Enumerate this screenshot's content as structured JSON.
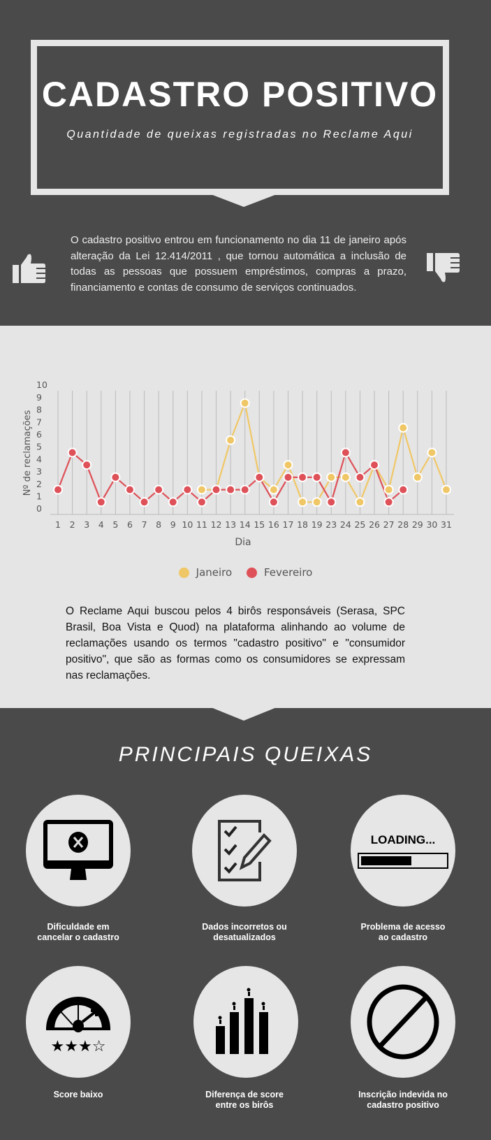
{
  "header": {
    "title": "CADASTRO POSITIVO",
    "subtitle": "Quantidade de queixas registradas no Reclame Aqui"
  },
  "intro": "O cadastro positivo entrou em funcionamento no dia 11 de janeiro após alteração da Lei 12.414/2011 , que tornou automática a inclusão de todas as pessoas que possuem empréstimos, compras a prazo, financiamento e contas de consumo de serviços continuados.",
  "icons": {
    "left": "thumbs-up-icon",
    "right": "thumbs-down-icon"
  },
  "chart_data": {
    "type": "line",
    "xlabel": "Dia",
    "ylabel": "Nº de reclamações",
    "ylim": [
      0,
      10
    ],
    "yticks": [
      "0",
      "1",
      "2",
      "3",
      "4",
      "5",
      "6",
      "7",
      "8",
      "9",
      "10"
    ],
    "categories": [
      "1",
      "2",
      "3",
      "4",
      "5",
      "6",
      "7",
      "8",
      "9",
      "10",
      "11",
      "12",
      "13",
      "14",
      "15",
      "16",
      "17",
      "18",
      "19",
      "23",
      "24",
      "25",
      "26",
      "27",
      "28",
      "29",
      "30",
      "31"
    ],
    "grid": "vertical",
    "legend": "bottom",
    "series": [
      {
        "name": "Janeiro",
        "color": "#f0c766",
        "values": [
          null,
          null,
          null,
          null,
          null,
          null,
          null,
          null,
          null,
          null,
          2,
          2,
          6,
          9,
          3,
          2,
          4,
          1,
          1,
          3,
          3,
          1,
          4,
          2,
          7,
          3,
          5,
          2
        ]
      },
      {
        "name": "Fevereiro",
        "color": "#de5158",
        "values": [
          2,
          5,
          4,
          1,
          3,
          2,
          1,
          2,
          1,
          2,
          1,
          2,
          2,
          2,
          3,
          1,
          3,
          3,
          3,
          1,
          5,
          3,
          4,
          1,
          2,
          null,
          null,
          null
        ]
      }
    ]
  },
  "para2": "O Reclame Aqui buscou pelos 4 birôs responsáveis (Serasa, SPC Brasil, Boa Vista e Quod) na plataforma alinhando ao volume de reclamações usando os termos \"cadastro positivo\" e \"consumidor positivo\", que são as formas como os consumidores se expressam nas reclamações.",
  "section_title": "PRINCIPAIS QUEIXAS",
  "loading_text": "LOADING...",
  "loading_progress": 0.6,
  "score_stars": {
    "filled": 3,
    "total": 4
  },
  "complaints": [
    {
      "label1": "Dificuldade em",
      "label2": "cancelar o cadastro",
      "icon": "monitor-x-icon"
    },
    {
      "label1": "Dados incorretos ou",
      "label2": "desatualizados",
      "icon": "checklist-pencil-icon"
    },
    {
      "label1": "Problema de acesso",
      "label2": "ao cadastro",
      "icon": "loading-bar-icon"
    },
    {
      "label1": "Score baixo",
      "label2": "",
      "icon": "gauge-stars-icon"
    },
    {
      "label1": "Diferença de score",
      "label2": "entre os birôs",
      "icon": "bar-chart-icon"
    },
    {
      "label1": "Inscrição indevida no",
      "label2": "cadastro positivo",
      "icon": "prohibited-icon"
    }
  ]
}
